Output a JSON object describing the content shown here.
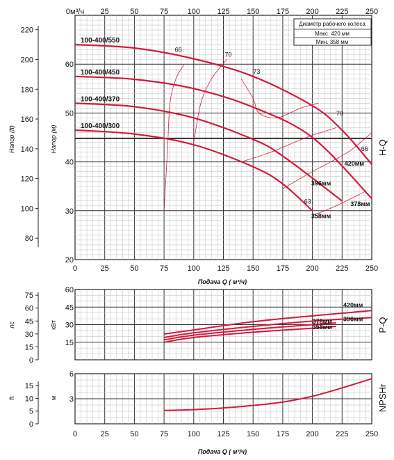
{
  "chart_data": [
    {
      "type": "line",
      "panel": "H-Q",
      "side_label": "H-Q",
      "top_axis_unit_html": "0м³/ч",
      "top_ticks": [
        "0м³/ч",
        "25",
        "50",
        "75",
        "100",
        "125",
        "150",
        "175",
        "200",
        "225",
        "250"
      ],
      "x_ticks": [
        "0",
        "25",
        "50",
        "75",
        "100",
        "125",
        "150",
        "175",
        "200",
        "225",
        "250"
      ],
      "xlabel": "Подача Q ( м³/ч)",
      "ylabel_left": "Напор (ft)",
      "ylabel_inner": "Напор (м)",
      "ft_ticks": [
        "80",
        "100",
        "120",
        "140",
        "160",
        "180",
        "200",
        "220"
      ],
      "m_ticks": [
        "20",
        "30",
        "40",
        "50",
        "60"
      ],
      "xlim": [
        0,
        250
      ],
      "ylim": [
        20,
        70
      ],
      "legend_box": {
        "title": "Диаметр рабочего колеса",
        "max": "Макс. 420 мм",
        "min": "Мин. 358 мм"
      },
      "series": [
        {
          "name": "100-400/550",
          "curve_label": "420мм",
          "x": [
            0,
            50,
            100,
            150,
            200,
            225,
            250
          ],
          "y": [
            64,
            63.3,
            61.1,
            57.5,
            51.5,
            46.5,
            39.5
          ]
        },
        {
          "name": "100-400/450",
          "curve_label": "",
          "x": [
            0,
            50,
            100,
            150,
            200,
            250
          ],
          "y": [
            57.5,
            56.9,
            55.0,
            51.2,
            45,
            32.5
          ]
        },
        {
          "name": "100-400/370",
          "curve_label": "",
          "x": [
            0,
            50,
            100,
            150,
            175,
            225
          ],
          "y": [
            52,
            51.3,
            49.0,
            44.6,
            41.2,
            32
          ]
        },
        {
          "name": "100-400/300",
          "curve_label": "",
          "x": [
            0,
            50,
            100,
            150,
            175,
            200
          ],
          "y": [
            46.5,
            45.7,
            43.5,
            39.0,
            35.5,
            30
          ]
        }
      ],
      "diameter_labels": [
        "420мм",
        "396мм",
        "378мм",
        "358мм"
      ],
      "efficiency_labels": [
        "66",
        "70",
        "73",
        "70",
        "66",
        "63"
      ]
    },
    {
      "type": "line",
      "panel": "P-Q",
      "side_label": "P-Q",
      "ylabel_left": "лс",
      "ylabel_inner": "кВт",
      "hp_ticks": [
        "0",
        "15",
        "30",
        "45",
        "60",
        "75"
      ],
      "kw_ticks": [
        "15",
        "30",
        "45",
        "60"
      ],
      "ylim": [
        0,
        60
      ],
      "xlim": [
        0,
        250
      ],
      "series": [
        {
          "name": "420мм",
          "x": [
            75,
            100,
            150,
            200,
            250
          ],
          "y": [
            22,
            25.5,
            32.5,
            37.5,
            42
          ]
        },
        {
          "name": "396мм",
          "x": [
            75,
            100,
            150,
            200,
            250
          ],
          "y": [
            19,
            23,
            28.5,
            33,
            36
          ]
        },
        {
          "name": "378мм",
          "x": [
            75,
            100,
            150,
            200,
            220
          ],
          "y": [
            17,
            21,
            26,
            30,
            31.5
          ]
        },
        {
          "name": "358мм",
          "x": [
            75,
            100,
            150,
            200,
            220
          ],
          "y": [
            15,
            19,
            23.5,
            27,
            28.5
          ]
        }
      ]
    },
    {
      "type": "line",
      "panel": "NPSHr",
      "side_label": "NPSHr",
      "ylabel_left": "ft",
      "ylabel_inner": "м",
      "ft_ticks": [
        "0",
        "5",
        "10",
        "15"
      ],
      "m_ticks": [
        "3",
        "6"
      ],
      "ylim": [
        0,
        6
      ],
      "xlim": [
        0,
        250
      ],
      "xlabel": "Подача Q ( м³/ч)",
      "x_ticks": [
        "0",
        "25",
        "50",
        "75",
        "100",
        "125",
        "150",
        "175",
        "200",
        "225",
        "250"
      ],
      "series": [
        {
          "name": "NPSHr",
          "x": [
            75,
            100,
            125,
            150,
            175,
            200,
            225,
            250
          ],
          "y": [
            1.6,
            1.7,
            1.9,
            2.2,
            2.6,
            3.3,
            4.3,
            5.4
          ]
        }
      ]
    }
  ]
}
